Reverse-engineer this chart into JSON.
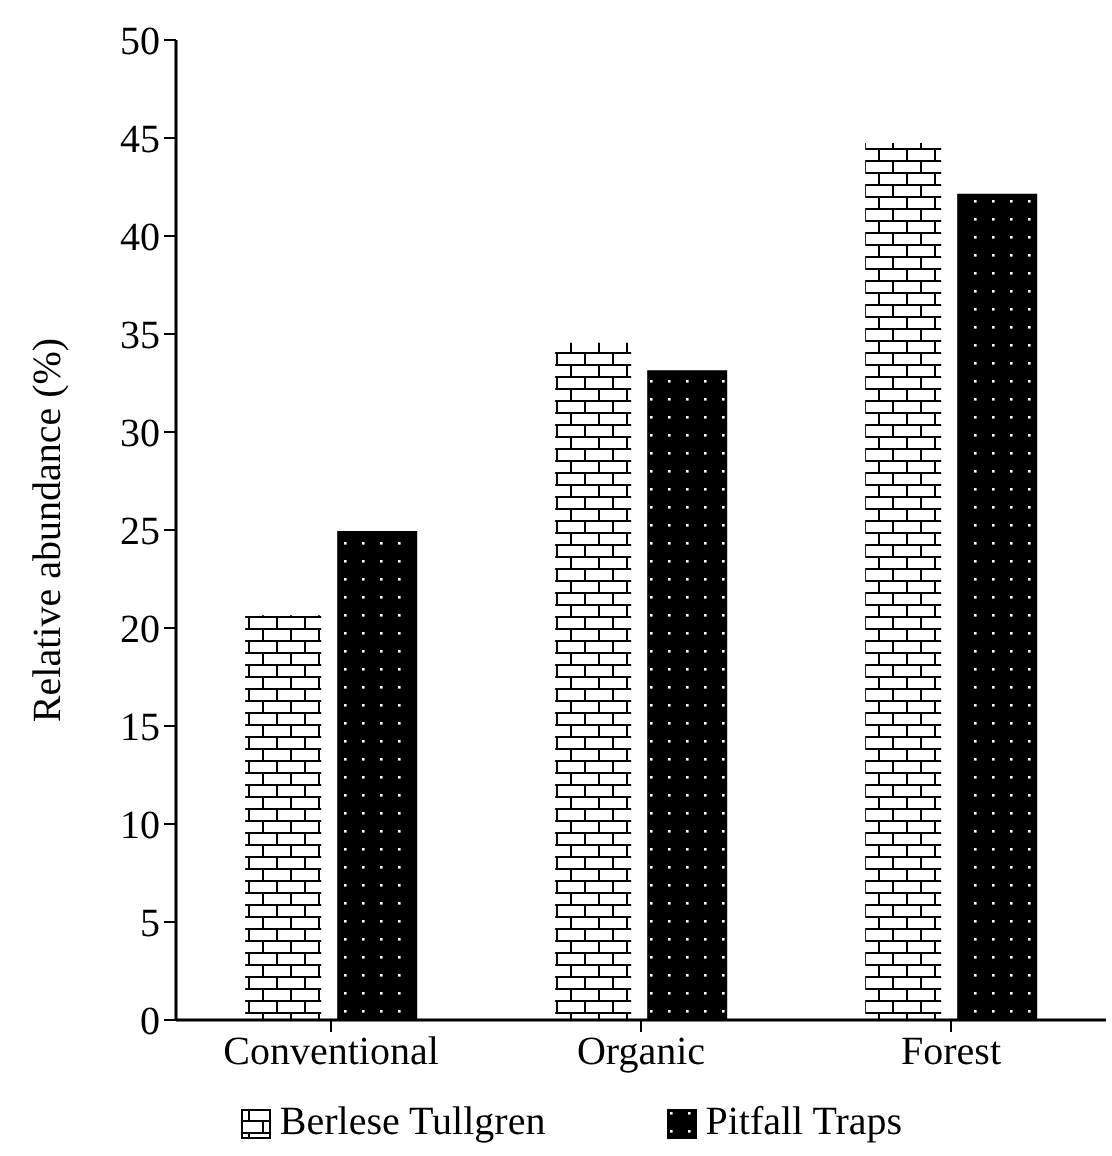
{
  "chart_data": {
    "type": "bar",
    "ylabel": "Relative abundance (%)",
    "categories": [
      "Conventional",
      "Organic",
      "Forest"
    ],
    "series": [
      {
        "name": "Berlese Tullgren",
        "color": "#ffffff",
        "values": [
          20.7,
          34.6,
          44.8
        ]
      },
      {
        "name": "Pitfall Traps",
        "color": "#000000",
        "values": [
          24.9,
          33.1,
          42.1
        ]
      }
    ],
    "ylim": [
      0,
      50
    ],
    "yticks": [
      0,
      5,
      10,
      15,
      20,
      25,
      30,
      35,
      40,
      45,
      50
    ],
    "grid": false,
    "legend": "bottom"
  }
}
